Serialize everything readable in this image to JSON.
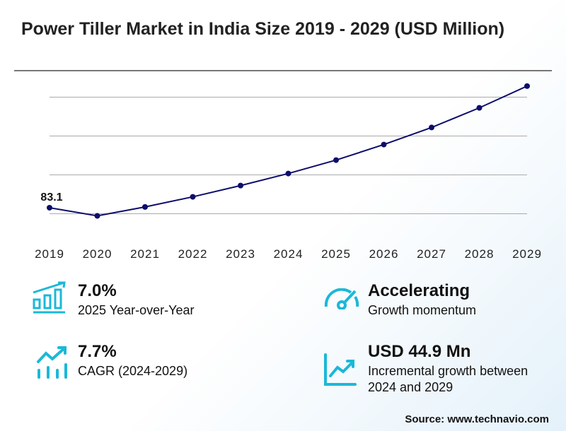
{
  "title": "Power Tiller Market in India Size 2019 - 2029 (USD Million)",
  "chart_data": {
    "type": "line",
    "title": "Power Tiller Market in India Size 2019 - 2029 (USD Million)",
    "categories": [
      "2019",
      "2020",
      "2021",
      "2022",
      "2023",
      "2024",
      "2025",
      "2026",
      "2027",
      "2028",
      "2029"
    ],
    "values": [
      83.1,
      78.9,
      83.5,
      88.7,
      94.5,
      100.7,
      107.6,
      115.6,
      124.4,
      134.5,
      145.7
    ],
    "data_labels": [
      {
        "category": "2019",
        "text": "83.1"
      }
    ],
    "ylim": [
      70,
      150
    ],
    "gridlines": [
      80,
      100,
      120,
      140
    ],
    "grid": true,
    "line_color": "#0d0d6b"
  },
  "stats": [
    {
      "value": "7.0%",
      "label": "2025 Year-over-Year",
      "icon": "bar-chart-growth-icon"
    },
    {
      "value": "Accelerating",
      "label": "Growth momentum",
      "icon": "speedometer-icon"
    },
    {
      "value": "7.7%",
      "label": "CAGR (2024-2029)",
      "icon": "trend-bars-icon"
    },
    {
      "value": "USD 44.9 Mn",
      "label": "Incremental growth between 2024 and 2029",
      "icon": "line-chart-icon"
    }
  ],
  "icon_color": "#1bb8d8",
  "source": "Source: www.technavio.com"
}
